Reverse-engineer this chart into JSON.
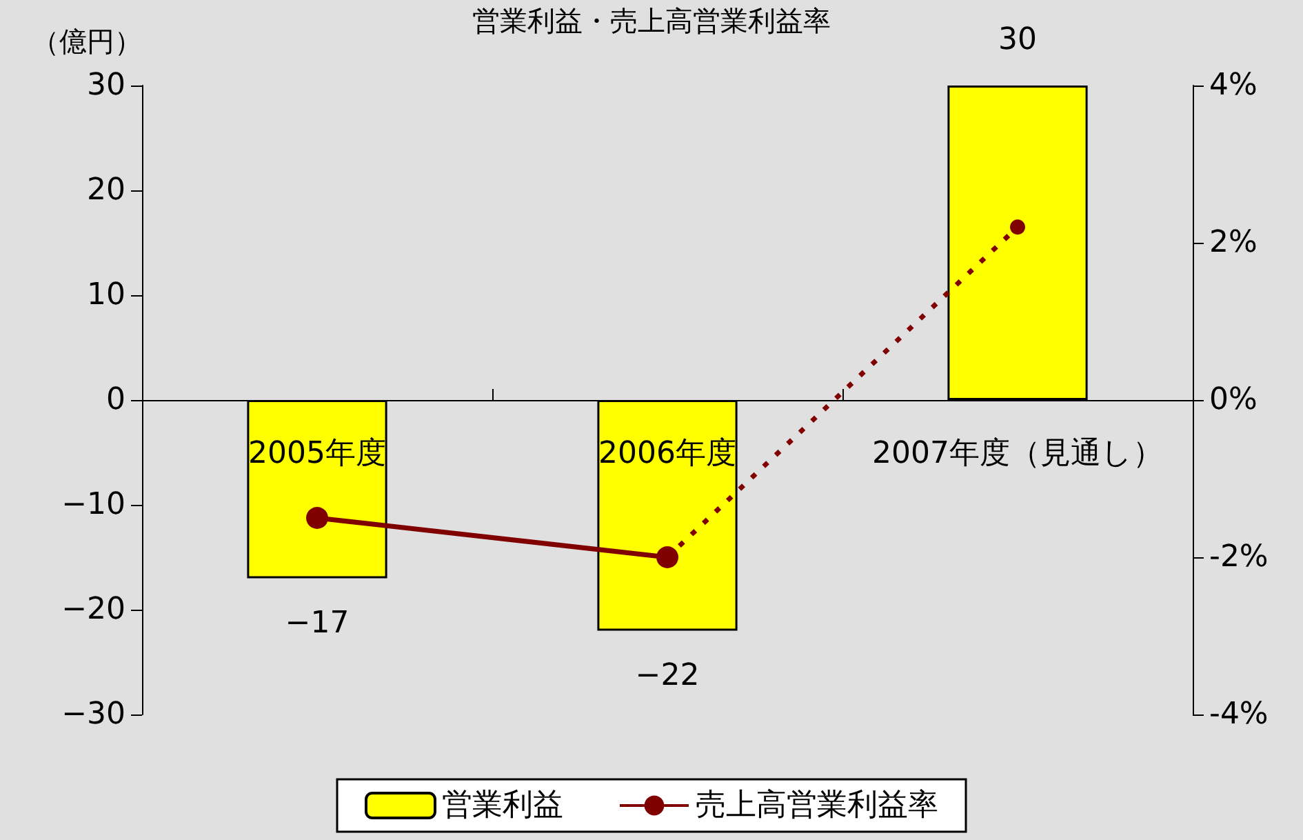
{
  "chart_data": {
    "type": "bar",
    "title": "営業利益・売上高営業利益率",
    "ylabel": "（億円）",
    "categories": [
      "2005年度",
      "2006年度",
      "2007年度（見通し）"
    ],
    "series": [
      {
        "name": "営業利益",
        "color": "#ffff00",
        "values": [
          -17,
          -22,
          30
        ],
        "value_labels": [
          "−17",
          "−22",
          "30"
        ]
      },
      {
        "type": "line",
        "name": "売上高営業利益率",
        "color": "#800000",
        "values": [
          -1.5,
          -2.0,
          null
        ],
        "axis": "y2",
        "line_style": "solid"
      },
      {
        "type": "line",
        "color": "#800000",
        "values": [
          null,
          -2.0,
          2.2
        ],
        "axis": "y2",
        "line_style": "dotted"
      }
    ],
    "ylim": [
      -30,
      30
    ],
    "yticks": [
      -30,
      -20,
      -10,
      0,
      10,
      20,
      30
    ],
    "y2lim": [
      -4,
      4
    ],
    "y2ticks": [
      {
        "value": -4,
        "label": "-4%"
      },
      {
        "value": -2,
        "label": "-2%"
      },
      {
        "value": 0,
        "label": "0%"
      },
      {
        "value": 2,
        "label": "2%"
      },
      {
        "value": 4,
        "label": "4%"
      }
    ],
    "marker": "circle",
    "legend": "bottom"
  }
}
